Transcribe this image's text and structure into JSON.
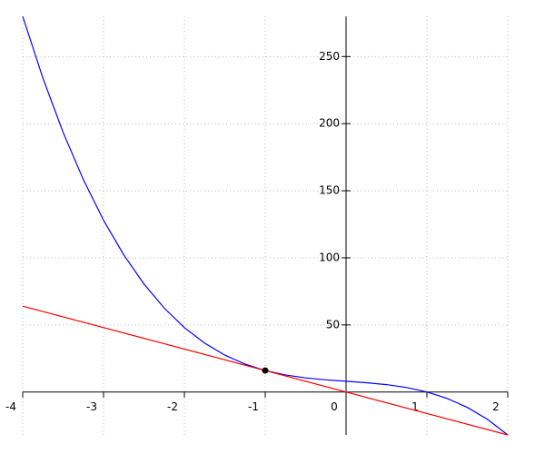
{
  "chart_data": {
    "type": "line",
    "xlim": [
      -4,
      2
    ],
    "ylim": [
      -32,
      280
    ],
    "xticks": [
      -4,
      -3,
      -2,
      -1,
      0,
      1,
      2
    ],
    "yticks": [
      50,
      100,
      150,
      200,
      250
    ],
    "grid": true,
    "series": [
      {
        "color": "#0000ff",
        "x": [
          -4,
          -3.75,
          -3.5,
          -3.25,
          -3,
          -2.75,
          -2.5,
          -2.25,
          -2,
          -1.75,
          -1.5,
          -1.25,
          -1,
          -0.75,
          -0.5,
          -0.25,
          0,
          0.25,
          0.5,
          0.75,
          1,
          1.25,
          1.5,
          1.75,
          2
        ],
        "values": [
          280,
          233.9375,
          193.5,
          158.3125,
          128,
          102.1875,
          80.5,
          62.5625,
          48,
          36.4375,
          27.5,
          20.8125,
          16,
          12.6875,
          10.5,
          9.0625,
          8,
          6.9375,
          5.5,
          3.3125,
          0,
          -4.8125,
          -11.5,
          -20.4375,
          -32
        ]
      },
      {
        "color": "#ff0000",
        "x": [
          -4,
          2
        ],
        "values": [
          64,
          -32
        ]
      }
    ],
    "points": [
      {
        "x": -1,
        "y": 16,
        "color": "#000000"
      }
    ]
  }
}
